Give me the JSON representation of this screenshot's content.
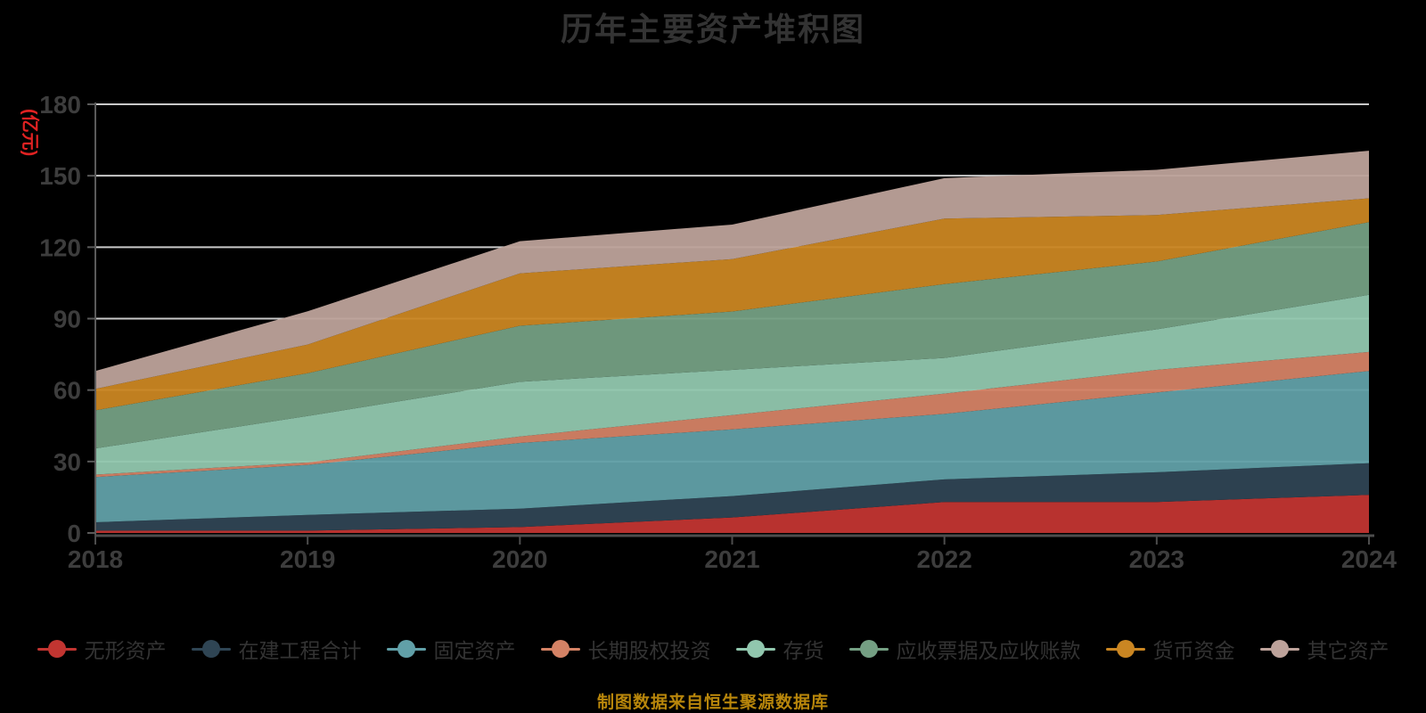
{
  "chart_data": {
    "type": "area",
    "stacked": true,
    "title": "历年主要资产堆积图",
    "unit_label": "(亿元)",
    "source": "制图数据来自恒生聚源数据库",
    "x": [
      "2018",
      "2019",
      "2020",
      "2021",
      "2022",
      "2023",
      "2024"
    ],
    "y_ticks": [
      0,
      30,
      60,
      90,
      120,
      150,
      180
    ],
    "ylim": [
      0,
      180
    ],
    "grid": true,
    "legend_position": "bottom",
    "background_color": "#000000",
    "series": [
      {
        "key": "intangible-assets",
        "name": "无形资产",
        "color": "#c23531",
        "values": [
          1.0,
          1.0,
          2.5,
          6.5,
          13.0,
          13.0,
          16.0
        ]
      },
      {
        "key": "construction-in-progress",
        "name": "在建工程合计",
        "color": "#2f4554",
        "values": [
          3.5,
          6.6,
          7.7,
          9.0,
          9.5,
          12.5,
          13.3
        ]
      },
      {
        "key": "fixed-assets",
        "name": "固定资产",
        "color": "#61a0a8",
        "values": [
          19.0,
          21.0,
          27.6,
          28.0,
          27.5,
          33.5,
          38.7
        ]
      },
      {
        "key": "long-term-equity-investment",
        "name": "长期股权投资",
        "color": "#d48265",
        "values": [
          1.0,
          1.0,
          2.7,
          6.0,
          8.5,
          9.5,
          8.0
        ]
      },
      {
        "key": "inventory",
        "name": "存货",
        "color": "#91c7ae",
        "values": [
          11.0,
          19.5,
          23.0,
          19.0,
          15.0,
          17.0,
          24.0
        ]
      },
      {
        "key": "notes-and-accounts-receivable",
        "name": "应收票据及应收账款",
        "color": "#749f83",
        "values": [
          16.0,
          18.0,
          23.5,
          24.5,
          31.0,
          28.5,
          30.5
        ]
      },
      {
        "key": "monetary-funds",
        "name": "货币资金",
        "color": "#ca8622",
        "values": [
          9.0,
          12.0,
          22.0,
          22.0,
          27.5,
          19.5,
          10.0
        ]
      },
      {
        "key": "other-assets",
        "name": "其它资产",
        "color": "#bda29a",
        "values": [
          7.5,
          14.0,
          13.5,
          14.5,
          17.0,
          19.0,
          20.0
        ]
      }
    ],
    "colors": {
      "title": "#333333",
      "axis_labels": "#3d3d3d",
      "axis_line": "#4d4d4d",
      "gridline": "#c9c9c9",
      "unit_label": "#e02222",
      "source_text": "#b8860b",
      "legend_text": "#333333"
    }
  }
}
